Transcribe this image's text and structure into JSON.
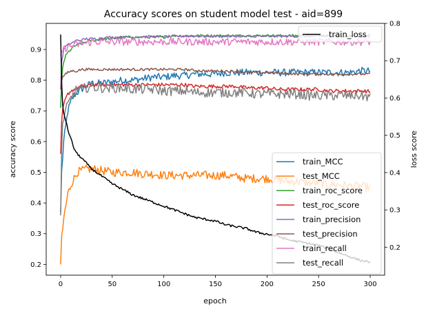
{
  "chart_data": {
    "type": "line",
    "title": "Accuracy scores on student model test - aid=899",
    "xlabel": "epoch",
    "ylabel": "accuracy score",
    "y2label": "loss score",
    "xlim": [
      -14,
      314
    ],
    "ylim": [
      0.165,
      0.985
    ],
    "y2lim": [
      0.125,
      0.8
    ],
    "xticks": [
      0,
      50,
      100,
      150,
      200,
      250,
      300
    ],
    "yticks": [
      0.2,
      0.3,
      0.4,
      0.5,
      0.6,
      0.7,
      0.8,
      0.9
    ],
    "y2ticks": [
      0.2,
      0.3,
      0.4,
      0.5,
      0.6,
      0.7,
      0.8
    ],
    "grid": false,
    "legend_placement": "lower-right",
    "legend2_placement": "upper-right",
    "x": [
      0,
      1,
      2,
      3,
      5,
      7,
      10,
      13,
      16,
      20,
      25,
      30,
      35,
      40,
      50,
      60,
      70,
      80,
      90,
      100,
      110,
      120,
      130,
      140,
      150,
      160,
      170,
      180,
      190,
      200,
      210,
      220,
      230,
      240,
      250,
      260,
      270,
      280,
      290,
      300
    ],
    "series": [
      {
        "name": "train_MCC",
        "color": "#1f77b4",
        "axis": "left",
        "jitter": 0.012,
        "values": [
          0.37,
          0.5,
          0.55,
          0.6,
          0.65,
          0.7,
          0.73,
          0.75,
          0.76,
          0.77,
          0.78,
          0.79,
          0.79,
          0.79,
          0.795,
          0.8,
          0.8,
          0.805,
          0.81,
          0.81,
          0.815,
          0.815,
          0.82,
          0.82,
          0.82,
          0.825,
          0.825,
          0.825,
          0.825,
          0.825,
          0.825,
          0.825,
          0.825,
          0.825,
          0.825,
          0.825,
          0.825,
          0.825,
          0.83,
          0.83
        ]
      },
      {
        "name": "test_MCC",
        "color": "#ff7f0e",
        "axis": "left",
        "jitter": 0.014,
        "values": [
          0.2,
          0.28,
          0.31,
          0.35,
          0.39,
          0.43,
          0.46,
          0.48,
          0.5,
          0.505,
          0.51,
          0.51,
          0.51,
          0.505,
          0.5,
          0.5,
          0.5,
          0.495,
          0.495,
          0.49,
          0.49,
          0.49,
          0.49,
          0.49,
          0.49,
          0.49,
          0.485,
          0.48,
          0.48,
          0.48,
          0.475,
          0.47,
          0.47,
          0.465,
          0.465,
          0.46,
          0.46,
          0.455,
          0.455,
          0.45
        ]
      },
      {
        "name": "train_roc_score",
        "color": "#2ca02c",
        "axis": "left",
        "jitter": 0.004,
        "values": [
          0.71,
          0.8,
          0.84,
          0.86,
          0.88,
          0.89,
          0.9,
          0.91,
          0.915,
          0.92,
          0.925,
          0.93,
          0.93,
          0.935,
          0.935,
          0.94,
          0.94,
          0.94,
          0.94,
          0.94,
          0.945,
          0.945,
          0.945,
          0.945,
          0.945,
          0.945,
          0.945,
          0.945,
          0.945,
          0.945,
          0.945,
          0.945,
          0.945,
          0.945,
          0.945,
          0.945,
          0.945,
          0.945,
          0.945,
          0.945
        ]
      },
      {
        "name": "test_roc_score",
        "color": "#d62728",
        "axis": "left",
        "jitter": 0.006,
        "values": [
          0.56,
          0.66,
          0.7,
          0.72,
          0.74,
          0.755,
          0.765,
          0.77,
          0.775,
          0.78,
          0.78,
          0.785,
          0.785,
          0.785,
          0.785,
          0.785,
          0.785,
          0.785,
          0.785,
          0.785,
          0.785,
          0.785,
          0.78,
          0.78,
          0.78,
          0.78,
          0.78,
          0.775,
          0.775,
          0.775,
          0.77,
          0.77,
          0.77,
          0.77,
          0.77,
          0.765,
          0.765,
          0.765,
          0.765,
          0.763
        ]
      },
      {
        "name": "train_precision",
        "color": "#9467bd",
        "axis": "left",
        "jitter": 0.004,
        "values": [
          0.77,
          0.86,
          0.88,
          0.9,
          0.91,
          0.915,
          0.92,
          0.925,
          0.93,
          0.93,
          0.935,
          0.935,
          0.935,
          0.938,
          0.94,
          0.94,
          0.94,
          0.942,
          0.942,
          0.942,
          0.943,
          0.943,
          0.943,
          0.943,
          0.943,
          0.943,
          0.943,
          0.943,
          0.943,
          0.943,
          0.943,
          0.943,
          0.943,
          0.943,
          0.943,
          0.943,
          0.943,
          0.943,
          0.943,
          0.943
        ]
      },
      {
        "name": "test_precision",
        "color": "#8c564b",
        "axis": "left",
        "jitter": 0.004,
        "values": [
          0.77,
          0.8,
          0.81,
          0.815,
          0.82,
          0.825,
          0.83,
          0.83,
          0.83,
          0.835,
          0.835,
          0.835,
          0.835,
          0.835,
          0.835,
          0.835,
          0.835,
          0.835,
          0.835,
          0.835,
          0.835,
          0.835,
          0.832,
          0.83,
          0.83,
          0.83,
          0.828,
          0.826,
          0.825,
          0.825,
          0.823,
          0.822,
          0.82,
          0.82,
          0.82,
          0.82,
          0.82,
          0.82,
          0.82,
          0.82
        ]
      },
      {
        "name": "train_recall",
        "color": "#e377c2",
        "axis": "left",
        "jitter": 0.012,
        "values": [
          0.88,
          0.89,
          0.9,
          0.9,
          0.905,
          0.91,
          0.91,
          0.915,
          0.915,
          0.92,
          0.92,
          0.925,
          0.925,
          0.925,
          0.925,
          0.925,
          0.925,
          0.925,
          0.925,
          0.925,
          0.925,
          0.925,
          0.925,
          0.925,
          0.925,
          0.925,
          0.925,
          0.925,
          0.925,
          0.925,
          0.925,
          0.925,
          0.925,
          0.925,
          0.925,
          0.925,
          0.925,
          0.925,
          0.925,
          0.925
        ]
      },
      {
        "name": "test_recall",
        "color": "#7f7f7f",
        "axis": "left",
        "jitter": 0.016,
        "values": [
          0.36,
          0.58,
          0.65,
          0.68,
          0.7,
          0.72,
          0.74,
          0.76,
          0.77,
          0.77,
          0.775,
          0.78,
          0.775,
          0.775,
          0.775,
          0.775,
          0.77,
          0.77,
          0.77,
          0.765,
          0.765,
          0.765,
          0.76,
          0.76,
          0.76,
          0.76,
          0.76,
          0.76,
          0.755,
          0.755,
          0.755,
          0.755,
          0.755,
          0.75,
          0.75,
          0.75,
          0.75,
          0.75,
          0.75,
          0.745
        ]
      },
      {
        "name": "train_loss",
        "color": "#000000",
        "axis": "right",
        "jitter": 0.003,
        "values": [
          0.77,
          0.64,
          0.58,
          0.56,
          0.54,
          0.515,
          0.49,
          0.465,
          0.45,
          0.44,
          0.425,
          0.41,
          0.4,
          0.39,
          0.37,
          0.355,
          0.34,
          0.33,
          0.32,
          0.31,
          0.3,
          0.29,
          0.28,
          0.275,
          0.27,
          0.26,
          0.255,
          0.25,
          0.24,
          0.235,
          0.23,
          0.22,
          0.215,
          0.21,
          0.205,
          0.195,
          0.185,
          0.175,
          0.165,
          0.16
        ]
      }
    ]
  }
}
